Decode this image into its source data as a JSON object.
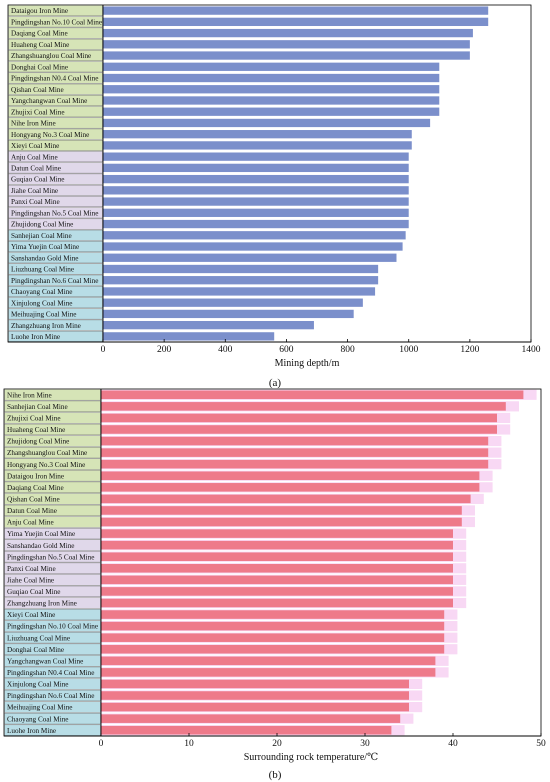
{
  "chart_data": [
    {
      "type": "bar",
      "orientation": "horizontal",
      "panel_label": "(a)",
      "xlabel": "Mining depth/m",
      "xlim": [
        0,
        1400
      ],
      "xticks": [
        "0",
        "200",
        "400",
        "600",
        "800",
        "1000",
        "1200",
        "1400"
      ],
      "bar_color": "#7b8fcb",
      "categories": [
        {
          "name": "Dataigou Iron Mine",
          "value": 1260,
          "group": "green"
        },
        {
          "name": "Pingdingshan No.10 Coal Mine",
          "value": 1260,
          "group": "green"
        },
        {
          "name": "Daqiang Coal Mine",
          "value": 1210,
          "group": "green"
        },
        {
          "name": "Huaheng Coal Mine",
          "value": 1200,
          "group": "green"
        },
        {
          "name": "Zhangshuanglou Coal Mine",
          "value": 1200,
          "group": "green"
        },
        {
          "name": "Donghai Coal Mine",
          "value": 1100,
          "group": "green"
        },
        {
          "name": "Pingdingshan N0.4 Coal Mine",
          "value": 1100,
          "group": "green"
        },
        {
          "name": "Qishan Coal Mine",
          "value": 1100,
          "group": "green"
        },
        {
          "name": "Yangchangwan Coal Mine",
          "value": 1100,
          "group": "green"
        },
        {
          "name": "Zhujixi Coal Mine",
          "value": 1100,
          "group": "green"
        },
        {
          "name": "Nihe Iron Mine",
          "value": 1070,
          "group": "green"
        },
        {
          "name": "Hongyang No.3 Coal Mine",
          "value": 1010,
          "group": "green"
        },
        {
          "name": "Xieyi Coal Mine",
          "value": 1010,
          "group": "green"
        },
        {
          "name": "Anju Coal Mine",
          "value": 1000,
          "group": "purple"
        },
        {
          "name": "Datun Coal Mine",
          "value": 1000,
          "group": "purple"
        },
        {
          "name": "Guqiao Coal Mine",
          "value": 1000,
          "group": "purple"
        },
        {
          "name": "Jiahe Coal Mine",
          "value": 1000,
          "group": "purple"
        },
        {
          "name": "Panxi Coal Mine",
          "value": 1000,
          "group": "purple"
        },
        {
          "name": "Pingdingshan No.5 Coal Mine",
          "value": 1000,
          "group": "purple"
        },
        {
          "name": "Zhujidong Coal Mine",
          "value": 1000,
          "group": "purple"
        },
        {
          "name": "Sanhejian Coal Mine",
          "value": 990,
          "group": "blue"
        },
        {
          "name": "Yima Yuejin Coal Mine",
          "value": 980,
          "group": "blue"
        },
        {
          "name": "Sanshandao Gold Mine",
          "value": 960,
          "group": "blue"
        },
        {
          "name": "Liuzhuang Coal Mine",
          "value": 900,
          "group": "blue"
        },
        {
          "name": "Pingdingshan No.6 Coal Mine",
          "value": 900,
          "group": "blue"
        },
        {
          "name": "Chaoyang Coal Mine",
          "value": 890,
          "group": "blue"
        },
        {
          "name": "Xinjulong Coal Mine",
          "value": 850,
          "group": "blue"
        },
        {
          "name": "Meihuajing Coal Mine",
          "value": 820,
          "group": "blue"
        },
        {
          "name": "Zhangzhuang Iron Mine",
          "value": 690,
          "group": "blue"
        },
        {
          "name": "Luohe Iron Mine",
          "value": 560,
          "group": "blue"
        }
      ]
    },
    {
      "type": "bar",
      "orientation": "horizontal",
      "panel_label": "(b)",
      "xlabel": "Surrounding rock temperature/℃",
      "xlim": [
        0,
        50
      ],
      "xticks": [
        "0",
        "10",
        "20",
        "30",
        "40",
        "50"
      ],
      "bar_color": "#ee7a8a",
      "shadow_color": "#f8d8f4",
      "categories": [
        {
          "name": "Nihe Iron Mine",
          "value": 48,
          "group": "green"
        },
        {
          "name": "Sanhejian Coal Mine",
          "value": 46,
          "group": "green"
        },
        {
          "name": "Zhujixi Coal Mine",
          "value": 45,
          "group": "green"
        },
        {
          "name": "Huaheng Coal Mine",
          "value": 45,
          "group": "green"
        },
        {
          "name": "Zhujidong Coal Mine",
          "value": 44,
          "group": "green"
        },
        {
          "name": "Zhangshuanglou Coal Mine",
          "value": 44,
          "group": "green"
        },
        {
          "name": "Hongyang No.3 Coal Mine",
          "value": 44,
          "group": "green"
        },
        {
          "name": "Dataigou Iron Mine",
          "value": 43,
          "group": "green"
        },
        {
          "name": "Daqiang Coal Mine",
          "value": 43,
          "group": "green"
        },
        {
          "name": "Qishan Coal Mine",
          "value": 42,
          "group": "green"
        },
        {
          "name": "Datun Coal Mine",
          "value": 41,
          "group": "green"
        },
        {
          "name": "Anju Coal Mine",
          "value": 41,
          "group": "green"
        },
        {
          "name": "Yima Yuejin Coal Mine",
          "value": 40,
          "group": "purple"
        },
        {
          "name": "Sanshandao Gold Mine",
          "value": 40,
          "group": "purple"
        },
        {
          "name": "Pingdingshan No.5 Coal Mine",
          "value": 40,
          "group": "purple"
        },
        {
          "name": "Panxi Coal Mine",
          "value": 40,
          "group": "purple"
        },
        {
          "name": "Jiahe Coal Mine",
          "value": 40,
          "group": "purple"
        },
        {
          "name": "Guqiao Coal Mine",
          "value": 40,
          "group": "purple"
        },
        {
          "name": "Zhangzhuang Iron Mine",
          "value": 40,
          "group": "purple"
        },
        {
          "name": "Xieyi Coal Mine",
          "value": 39,
          "group": "blue"
        },
        {
          "name": "Pingdingshan No.10 Coal Mine",
          "value": 39,
          "group": "blue"
        },
        {
          "name": "Liuzhuang Coal Mine",
          "value": 39,
          "group": "blue"
        },
        {
          "name": "Donghai Coal Mine",
          "value": 39,
          "group": "blue"
        },
        {
          "name": "Yangchangwan Coal Mine",
          "value": 38,
          "group": "blue"
        },
        {
          "name": "Pingdingshan N0.4 Coal Mine",
          "value": 38,
          "group": "blue"
        },
        {
          "name": "Xinjulong Coal Mine",
          "value": 35,
          "group": "blue"
        },
        {
          "name": "Pingdingshan No.6 Coal Mine",
          "value": 35,
          "group": "blue"
        },
        {
          "name": "Meihuajing Coal Mine",
          "value": 35,
          "group": "blue"
        },
        {
          "name": "Chaoyang Coal Mine",
          "value": 34,
          "group": "blue"
        },
        {
          "name": "Luohe Iron Mine",
          "value": 33,
          "group": "blue"
        }
      ]
    }
  ],
  "group_colors": {
    "green": "#d6e4b7",
    "purple": "#e0d8ea",
    "blue": "#b8dde6"
  },
  "axis_color": "#000000"
}
